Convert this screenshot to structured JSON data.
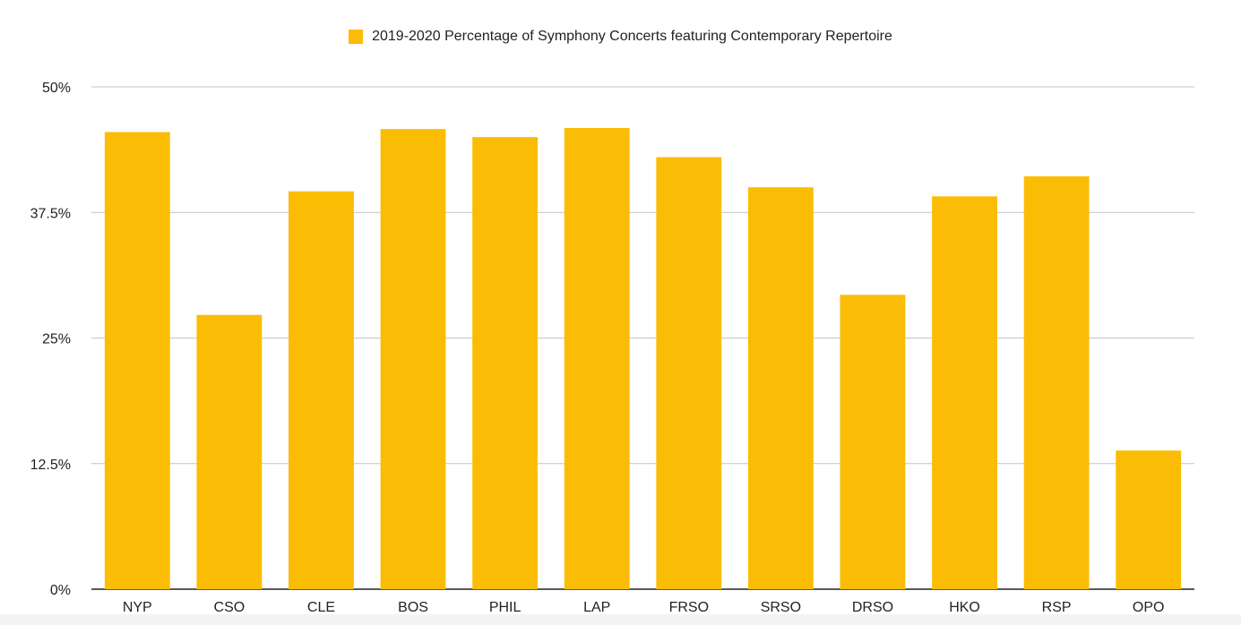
{
  "chart_data": {
    "type": "bar",
    "series": [
      {
        "name": "2019-2020 Percentage of Symphony Concerts featuring Contemporary Repertoire",
        "color": "#FBBC05",
        "values": [
          45.5,
          27.3,
          39.6,
          45.8,
          45.0,
          45.9,
          43.0,
          40.0,
          29.3,
          39.1,
          41.1,
          13.8
        ]
      }
    ],
    "categories": [
      "NYP",
      "CSO",
      "CLE",
      "BOS",
      "PHIL",
      "LAP",
      "FRSO",
      "SRSO",
      "DRSO",
      "HKO",
      "RSP",
      "OPO"
    ],
    "ylim": [
      0,
      50
    ],
    "yticks": [
      0,
      12.5,
      25,
      37.5,
      50
    ],
    "ytick_labels": [
      "0%",
      "12.5%",
      "25%",
      "37.5%",
      "50%"
    ],
    "grid": true,
    "legend_position": "top-center",
    "xlabel": "",
    "ylabel": "",
    "title": ""
  }
}
